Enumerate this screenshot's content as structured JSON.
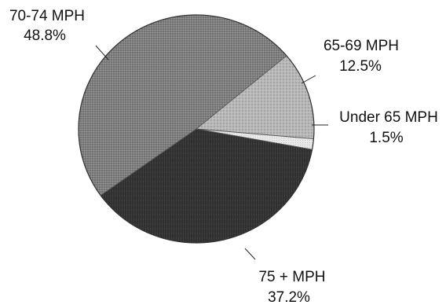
{
  "chart_data": {
    "type": "pie",
    "title": "",
    "slices": [
      {
        "label": "65-69 MPH",
        "value_label": "12.5%",
        "value": 12.5,
        "color": "#bcbcbc"
      },
      {
        "label": "Under 65 MPH",
        "value_label": "1.5%",
        "value": 1.5,
        "color": "#e6e6e6"
      },
      {
        "label": "75 + MPH",
        "value_label": "37.2%",
        "value": 37.2,
        "color": "#3c3c3c"
      },
      {
        "label": "70-74 MPH",
        "value_label": "48.8%",
        "value": 48.8,
        "color": "#8c8c8c"
      }
    ],
    "legend": "none"
  }
}
